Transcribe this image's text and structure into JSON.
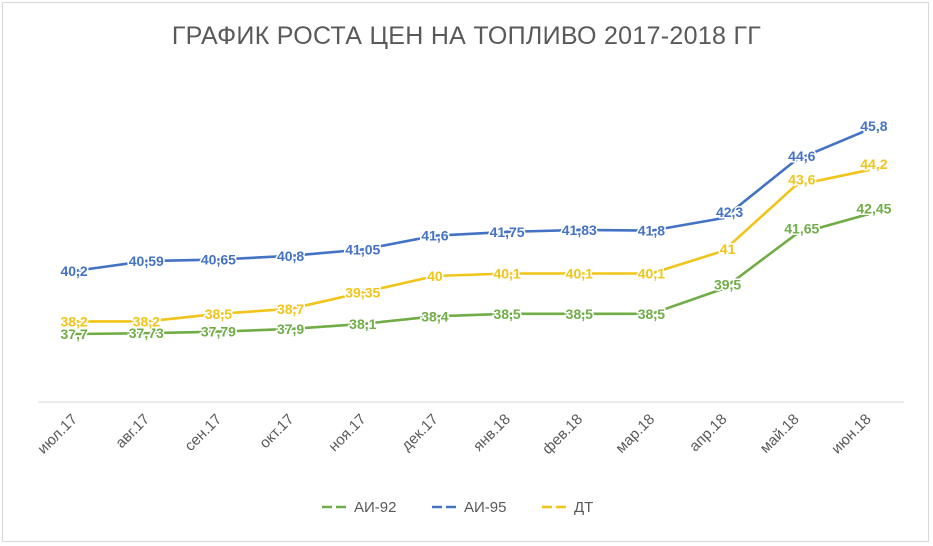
{
  "chart_data": {
    "type": "line",
    "title": "ГРАФИК РОСТА ЦЕН НА ТОПЛИВО 2017-2018 ГГ",
    "xlabel": "",
    "ylabel": "",
    "categories": [
      "июл.17",
      "авг.17",
      "сен.17",
      "окт.17",
      "ноя.17",
      "дек.17",
      "янв.18",
      "фев.18",
      "мар.18",
      "апр.18",
      "май.18",
      "июн.18"
    ],
    "ylim": [
      35,
      47
    ],
    "grid": false,
    "legend": "bottom",
    "series": [
      {
        "name": "АИ-92",
        "color": "#70ad47",
        "values": [
          37.7,
          37.73,
          37.79,
          37.9,
          38.1,
          38.4,
          38.5,
          38.5,
          38.5,
          39.5,
          41.65,
          42.45
        ],
        "labels": [
          "37,7",
          "37,73",
          "37,79",
          "37,9",
          "38,1",
          "38,4",
          "38,5",
          "38,5",
          "38,5",
          "39,5",
          "41,65",
          "42,45"
        ]
      },
      {
        "name": "АИ-95",
        "color": "#4472c4",
        "values": [
          40.2,
          40.59,
          40.65,
          40.8,
          41.05,
          41.6,
          41.75,
          41.83,
          41.8,
          42.3,
          44.6,
          45.8
        ],
        "labels": [
          "40,2",
          "40,59",
          "40,65",
          "40,8",
          "41,05",
          "41,6",
          "41,75",
          "41,83",
          "41,8",
          "42,3",
          "44,6",
          "45,8"
        ]
      },
      {
        "name": "ДТ",
        "color": "#f0c419",
        "values": [
          38.2,
          38.2,
          38.5,
          38.7,
          39.35,
          40,
          40.1,
          40.1,
          40.1,
          41,
          43.6,
          44.2
        ],
        "labels": [
          "38,2",
          "38,2",
          "38,5",
          "38,7",
          "39,35",
          "40",
          "40,1",
          "40,1",
          "40,1",
          "41",
          "43,6",
          "44,2"
        ]
      }
    ]
  }
}
